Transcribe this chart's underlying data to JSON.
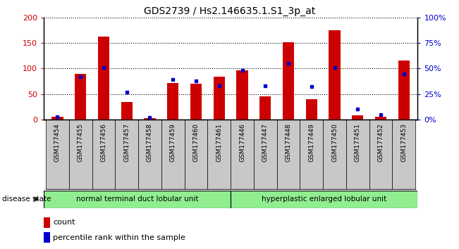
{
  "title": "GDS2739 / Hs2.146635.1.S1_3p_at",
  "samples": [
    "GSM177454",
    "GSM177455",
    "GSM177456",
    "GSM177457",
    "GSM177458",
    "GSM177459",
    "GSM177460",
    "GSM177461",
    "GSM177446",
    "GSM177447",
    "GSM177448",
    "GSM177449",
    "GSM177450",
    "GSM177451",
    "GSM177452",
    "GSM177453"
  ],
  "counts": [
    5,
    90,
    163,
    35,
    2,
    72,
    70,
    84,
    96,
    45,
    152,
    40,
    175,
    8,
    5,
    115
  ],
  "percentiles": [
    3,
    42,
    51,
    27,
    2,
    39,
    38,
    33,
    48,
    33,
    55,
    32,
    51,
    10,
    5,
    45
  ],
  "group1_label": "normal terminal duct lobular unit",
  "group2_label": "hyperplastic enlarged lobular unit",
  "n_group1": 8,
  "n_group2": 8,
  "bar_color": "#cc0000",
  "dot_color": "#0000cc",
  "group_color": "#90ee90",
  "ylim_max": 200,
  "yticks_left": [
    0,
    50,
    100,
    150,
    200
  ],
  "yticks_right": [
    0,
    25,
    50,
    75,
    100
  ],
  "bar_width": 0.5,
  "disease_state_label": "disease state",
  "legend_count_label": "count",
  "legend_percentile_label": "percentile rank within the sample",
  "xlabel_bg_color": "#c8c8c8",
  "plot_bg_color": "#ffffff",
  "grid_style": "dotted"
}
